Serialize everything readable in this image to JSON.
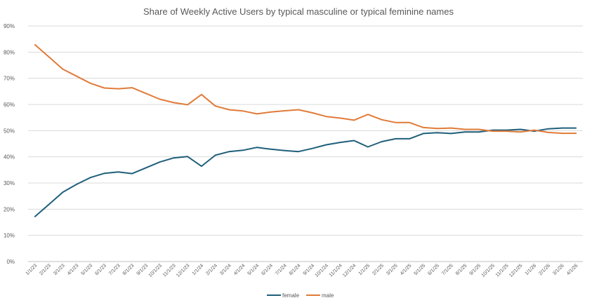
{
  "chart_data": {
    "type": "line",
    "title": "Share of Weekly Active Users by typical masculine or typical feminine names",
    "xlabel": "",
    "ylabel": "",
    "ylim": [
      0,
      90
    ],
    "y_ticks": [
      "0%",
      "10%",
      "20%",
      "30%",
      "40%",
      "50%",
      "60%",
      "70%",
      "80%",
      "90%"
    ],
    "grid": "horizontal",
    "legend_position": "bottom",
    "categories": [
      "1/1/23",
      "2/1/23",
      "3/1/23",
      "4/1/23",
      "5/1/23",
      "6/1/23",
      "7/1/23",
      "8/1/23",
      "9/1/23",
      "10/1/23",
      "11/1/23",
      "12/1/23",
      "1/1/24",
      "2/1/24",
      "3/1/24",
      "4/1/24",
      "5/1/24",
      "6/1/24",
      "7/1/24",
      "8/1/24",
      "9/1/24",
      "10/1/24",
      "11/1/24",
      "12/1/24",
      "1/1/25",
      "2/1/25",
      "3/1/25",
      "4/1/25",
      "5/1/25",
      "6/1/25",
      "7/1/25",
      "8/1/25",
      "9/1/25",
      "10/1/25",
      "11/1/25",
      "12/1/25",
      "1/1/26",
      "2/1/26",
      "3/1/26",
      "4/1/26"
    ],
    "series": [
      {
        "name": "female",
        "color": "#1f5f7a",
        "values": [
          17.2,
          21.8,
          26.5,
          29.5,
          32.1,
          33.7,
          34.2,
          33.6,
          35.8,
          38.0,
          39.6,
          40.1,
          36.4,
          40.6,
          42.0,
          42.5,
          43.6,
          42.9,
          42.4,
          42.0,
          43.2,
          44.6,
          45.5,
          46.2,
          43.8,
          45.8,
          46.9,
          46.9,
          48.9,
          49.2,
          48.9,
          49.5,
          49.5,
          50.2,
          50.2,
          50.5,
          49.8,
          50.7,
          51.0,
          51.0
        ]
      },
      {
        "name": "male",
        "color": "#e07b39",
        "values": [
          82.8,
          78.2,
          73.5,
          70.8,
          68.1,
          66.3,
          66.0,
          66.4,
          64.2,
          62.0,
          60.7,
          59.9,
          63.8,
          59.4,
          58.0,
          57.5,
          56.4,
          57.1,
          57.6,
          58.0,
          56.8,
          55.4,
          54.8,
          54.0,
          56.2,
          54.2,
          53.1,
          53.1,
          51.2,
          50.8,
          51.0,
          50.5,
          50.5,
          49.8,
          49.8,
          49.5,
          50.2,
          49.3,
          49.0,
          49.0
        ]
      }
    ]
  }
}
